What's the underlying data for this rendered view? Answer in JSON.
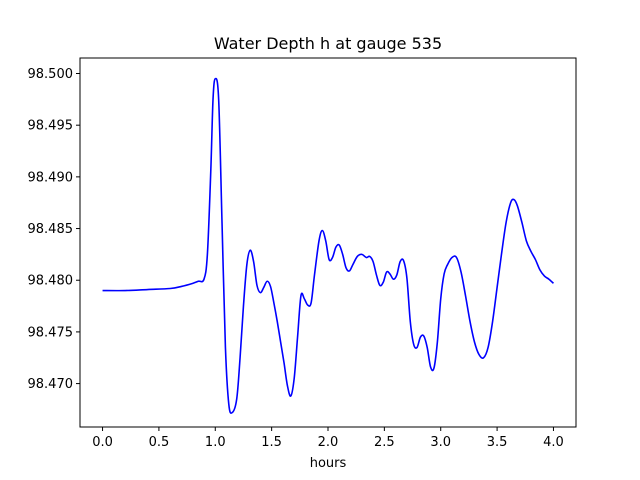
{
  "chart_data": {
    "type": "line",
    "title": "Water Depth h at gauge 535",
    "xlabel": "hours",
    "ylabel": "",
    "xlim": [
      -0.2,
      4.2
    ],
    "ylim": [
      98.4658,
      98.5015
    ],
    "xticks": [
      0.0,
      0.5,
      1.0,
      1.5,
      2.0,
      2.5,
      3.0,
      3.5,
      4.0
    ],
    "xtick_labels": [
      "0.0",
      "0.5",
      "1.0",
      "1.5",
      "2.0",
      "2.5",
      "3.0",
      "3.5",
      "4.0"
    ],
    "yticks": [
      98.47,
      98.475,
      98.48,
      98.485,
      98.49,
      98.495,
      98.5
    ],
    "ytick_labels": [
      "98.470",
      "98.475",
      "98.480",
      "98.485",
      "98.490",
      "98.495",
      "98.500"
    ],
    "grid": false,
    "series": [
      {
        "color": "#0000ff",
        "x": [
          0.0,
          0.2,
          0.4,
          0.6,
          0.7,
          0.8,
          0.85,
          0.9,
          0.93,
          0.96,
          0.98,
          1.0,
          1.03,
          1.06,
          1.09,
          1.12,
          1.15,
          1.19,
          1.22,
          1.25,
          1.28,
          1.31,
          1.34,
          1.37,
          1.4,
          1.43,
          1.46,
          1.49,
          1.52,
          1.55,
          1.58,
          1.61,
          1.64,
          1.67,
          1.7,
          1.73,
          1.76,
          1.79,
          1.82,
          1.85,
          1.88,
          1.92,
          1.95,
          1.98,
          2.01,
          2.04,
          2.07,
          2.1,
          2.13,
          2.16,
          2.19,
          2.22,
          2.26,
          2.3,
          2.34,
          2.37,
          2.4,
          2.43,
          2.46,
          2.49,
          2.52,
          2.55,
          2.58,
          2.61,
          2.64,
          2.67,
          2.7,
          2.73,
          2.76,
          2.79,
          2.82,
          2.85,
          2.88,
          2.91,
          2.94,
          2.97,
          3.0,
          3.03,
          3.06,
          3.1,
          3.14,
          3.18,
          3.22,
          3.26,
          3.3,
          3.34,
          3.38,
          3.42,
          3.46,
          3.5,
          3.54,
          3.58,
          3.62,
          3.65,
          3.68,
          3.72,
          3.76,
          3.8,
          3.84,
          3.88,
          3.92,
          3.96,
          4.0
        ],
        "y": [
          98.479,
          98.479,
          98.4791,
          98.4792,
          98.4794,
          98.4797,
          98.4799,
          98.4801,
          98.4825,
          98.4905,
          98.4975,
          98.4995,
          98.4975,
          98.4855,
          98.4735,
          98.468,
          98.4672,
          98.4685,
          98.4725,
          98.4775,
          98.4815,
          98.4829,
          98.4818,
          98.4795,
          98.4788,
          98.4793,
          98.4799,
          98.4794,
          98.4778,
          98.476,
          98.474,
          98.472,
          98.4698,
          98.4688,
          98.4705,
          98.4745,
          98.4785,
          98.4782,
          98.4776,
          98.4778,
          98.4805,
          98.4838,
          98.4848,
          98.4838,
          98.482,
          98.4822,
          98.4832,
          98.4834,
          98.4825,
          98.4812,
          98.4809,
          98.4815,
          98.4823,
          98.4825,
          98.4822,
          98.4823,
          98.4818,
          98.4805,
          98.4795,
          98.4798,
          98.4808,
          98.4806,
          98.4801,
          98.4805,
          98.4818,
          98.4819,
          98.4802,
          98.476,
          98.4738,
          98.4735,
          98.4745,
          98.4746,
          98.4735,
          98.4716,
          98.4715,
          98.474,
          98.4782,
          98.4806,
          98.4815,
          98.4822,
          98.4822,
          98.4808,
          98.4785,
          98.476,
          98.474,
          98.4728,
          98.4725,
          98.4735,
          98.476,
          98.4793,
          98.4826,
          98.4856,
          98.4875,
          98.4878,
          98.4872,
          98.4856,
          98.4838,
          98.4828,
          98.482,
          98.481,
          98.4804,
          98.4801,
          98.4797
        ]
      }
    ]
  }
}
